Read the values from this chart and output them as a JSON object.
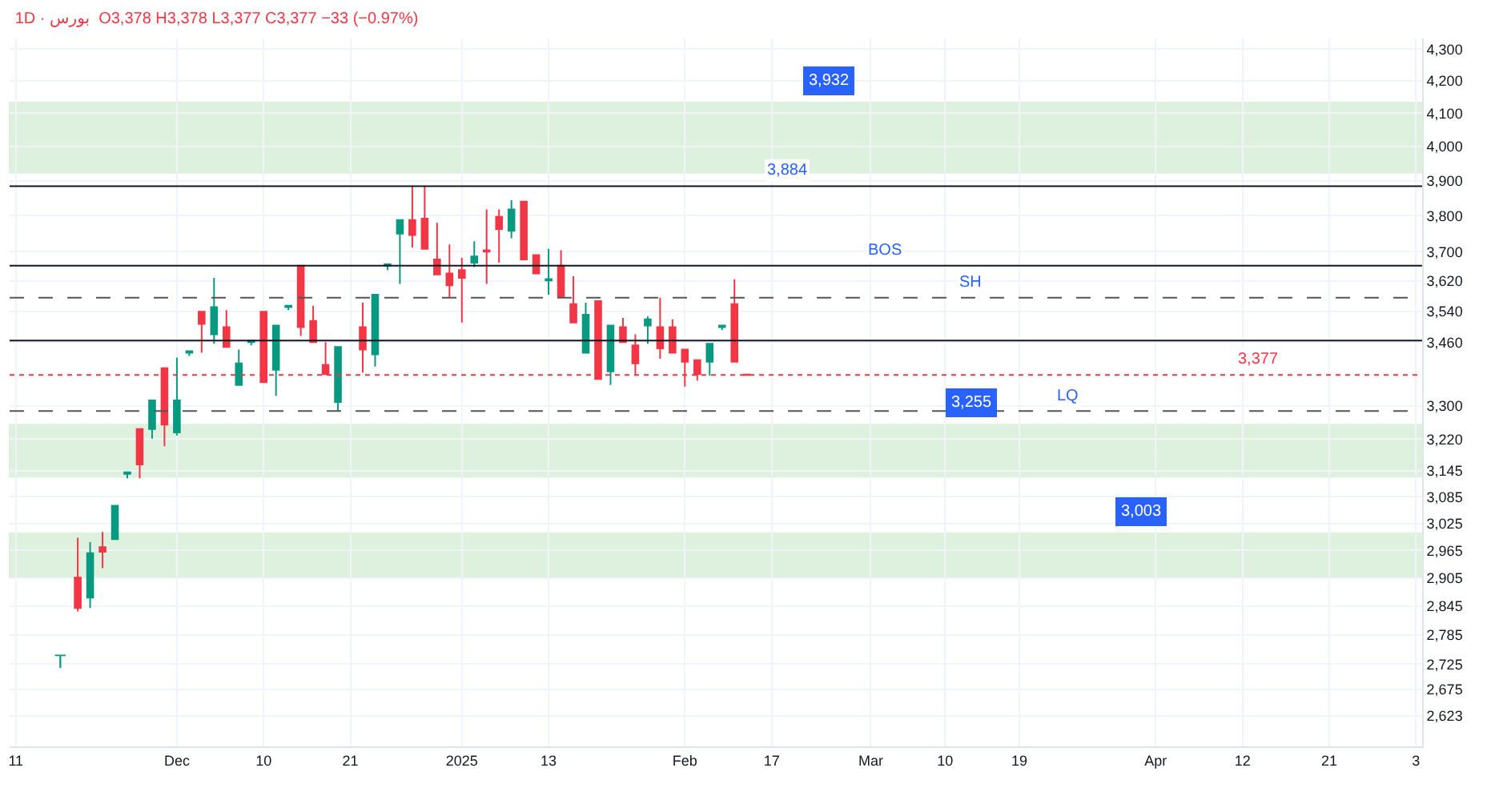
{
  "chart_data": {
    "type": "candlestick",
    "title": "1D · بورس  O3,378 H3,378 L3,377 C3,377 −33 (−0.97%)",
    "categories": [
      "11",
      null,
      null,
      null,
      null,
      null,
      null,
      null,
      null,
      null,
      null,
      null,
      null,
      "Dec",
      null,
      null,
      null,
      null,
      null,
      null,
      "10",
      null,
      null,
      null,
      null,
      null,
      null,
      "21",
      null,
      null,
      null,
      null,
      null,
      null,
      null,
      null,
      "2025",
      null,
      null,
      null,
      null,
      null,
      null,
      "13",
      null,
      null,
      null,
      null,
      null,
      null,
      null,
      null,
      null,
      null,
      "Feb",
      null,
      null,
      null,
      null,
      null,
      null,
      "17",
      null,
      null,
      null,
      null,
      null,
      null,
      null,
      "Mar",
      null,
      null,
      null,
      null,
      null,
      "10",
      null,
      null,
      null,
      null,
      null,
      "19",
      null,
      null,
      null,
      null,
      null,
      null,
      null,
      null,
      null,
      null,
      "Apr",
      null,
      null,
      null,
      null,
      null,
      null,
      "12",
      null,
      null,
      null,
      null,
      null,
      null,
      "21",
      null,
      null,
      null,
      null,
      null,
      null,
      "3"
    ],
    "ohlc": [
      null,
      null,
      null,
      null,
      null,
      [
        2906,
        2993,
        2834,
        2841
      ],
      [
        2863,
        2983,
        2841,
        2959
      ],
      [
        2972,
        3006,
        2926,
        2962
      ],
      [
        2990,
        3065,
        2990,
        3065
      ],
      [
        3138,
        3142,
        3128,
        3142
      ],
      [
        3244,
        3244,
        3128,
        3160
      ],
      [
        3244,
        3314,
        3221,
        3314
      ],
      [
        3394,
        3394,
        3203,
        3255
      ],
      [
        3236,
        3421,
        3229,
        3314
      ],
      [
        3433,
        3437,
        3425,
        3437
      ],
      [
        3539,
        3539,
        3433,
        3507
      ],
      [
        3480,
        3629,
        3456,
        3551
      ],
      [
        3499,
        3543,
        3448,
        3448
      ],
      [
        3352,
        3441,
        3352,
        3406
      ],
      [
        3460,
        3464,
        3452,
        3464
      ],
      [
        3539,
        3539,
        3359,
        3359
      ],
      [
        3390,
        3503,
        3325,
        3503
      ],
      [
        3551,
        3555,
        3543,
        3555
      ],
      [
        3662,
        3662,
        3476,
        3499
      ],
      [
        3515,
        3555,
        3460,
        3460
      ],
      [
        3402,
        3460,
        3379,
        3379
      ],
      [
        3310,
        3448,
        3288,
        3448
      ],
      null,
      [
        3499,
        3563,
        3383,
        3441
      ],
      [
        3429,
        3584,
        3398,
        3584
      ],
      [
        3662,
        3666,
        3650,
        3666
      ],
      [
        3750,
        3788,
        3613,
        3788
      ],
      [
        3788,
        3884,
        3712,
        3746
      ],
      [
        3792,
        3884,
        3708,
        3708
      ],
      [
        3679,
        3780,
        3638,
        3638
      ],
      [
        3641,
        3720,
        3576,
        3609
      ],
      [
        3650,
        3683,
        3511,
        3629
      ],
      [
        3670,
        3729,
        3658,
        3687
      ],
      [
        3704,
        3818,
        3613,
        3700
      ],
      [
        3797,
        3818,
        3670,
        3763
      ],
      [
        3758,
        3844,
        3737,
        3818
      ],
      [
        3840,
        3840,
        3679,
        3679
      ],
      [
        3691,
        3691,
        3641,
        3641
      ],
      [
        3622,
        3708,
        3584,
        3626
      ],
      [
        3662,
        3704,
        3580,
        3580
      ],
      [
        3559,
        3633,
        3511,
        3511
      ],
      [
        3433,
        3563,
        3433,
        3531
      ],
      [
        3567,
        3567,
        3367,
        3367
      ],
      [
        3386,
        3503,
        3352,
        3503
      ],
      [
        3499,
        3523,
        3460,
        3460
      ],
      [
        3452,
        3480,
        3375,
        3406
      ],
      [
        3503,
        3527,
        3456,
        3519
      ],
      [
        3499,
        3576,
        3417,
        3444
      ],
      [
        3499,
        3519,
        3433,
        3433
      ],
      [
        3441,
        3441,
        3348,
        3410
      ],
      [
        3414,
        3414,
        3363,
        3379
      ],
      [
        3410,
        3456,
        3375,
        3456
      ],
      [
        3499,
        3503,
        3491,
        3503
      ],
      [
        3559,
        3625,
        3410,
        3410
      ],
      [
        3378,
        3378,
        3377,
        3377
      ],
      null,
      null,
      null,
      null,
      null,
      null,
      null,
      null,
      null,
      null,
      null,
      null,
      null,
      null,
      null,
      null,
      null,
      null,
      null,
      null,
      null,
      null,
      null,
      null,
      null,
      null,
      null,
      null,
      null,
      null,
      null,
      null,
      null,
      null,
      null,
      null,
      null,
      null,
      null,
      null,
      null,
      null,
      null,
      null,
      null,
      null,
      null,
      null,
      null,
      null,
      null,
      null,
      null,
      null
    ],
    "log": true,
    "ylim": [
      2564,
      4334
    ],
    "yticks": [
      {
        "value": 2623,
        "label": "2,623"
      },
      {
        "value": 2675,
        "label": "2,675"
      },
      {
        "value": 2725,
        "label": "2,725"
      },
      {
        "value": 2785,
        "label": "2,785"
      },
      {
        "value": 2845,
        "label": "2,845"
      },
      {
        "value": 2905,
        "label": "2,905"
      },
      {
        "value": 2965,
        "label": "2,965"
      },
      {
        "value": 3025,
        "label": "3,025"
      },
      {
        "value": 3085,
        "label": "3,085"
      },
      {
        "value": 3145,
        "label": "3,145"
      },
      {
        "value": 3220,
        "label": "3,220"
      },
      {
        "value": 3300,
        "label": "3,300"
      },
      {
        "value": 3460,
        "label": "3,460"
      },
      {
        "value": 3540,
        "label": "3,540"
      },
      {
        "value": 3620,
        "label": "3,620"
      },
      {
        "value": 3700,
        "label": "3,700"
      },
      {
        "value": 3800,
        "label": "3,800"
      },
      {
        "value": 3900,
        "label": "3,900"
      },
      {
        "value": 4000,
        "label": "4,000"
      },
      {
        "value": 4100,
        "label": "4,100"
      },
      {
        "value": 4200,
        "label": "4,200"
      },
      {
        "value": 4300,
        "label": "4,300"
      }
    ],
    "grid": true,
    "ref_lines": [
      {
        "axis": "y",
        "value": 3884,
        "label": "3,884",
        "color": "#131722",
        "line_style": "solid"
      },
      {
        "axis": "y",
        "value": 3662,
        "label": "BOS",
        "color": "#131722",
        "line_style": "solid"
      },
      {
        "axis": "y",
        "value": 3576,
        "label": "SH",
        "color": "#555555",
        "line_style": "dashed"
      },
      {
        "axis": "y",
        "value": 3288,
        "label": "LQ",
        "color": "#555555",
        "line_style": "dashed"
      },
      {
        "axis": "y",
        "value": 3464,
        "label": null,
        "color": "#131722",
        "line_style": "solid"
      },
      {
        "axis": "y",
        "value": 3377,
        "label": "3,377",
        "color": "#f23645",
        "line_style": "dotted"
      }
    ],
    "bands": [
      {
        "axis": "y",
        "from": 3923,
        "to": 4133,
        "label": "3,932",
        "color": "#4caf50"
      },
      {
        "axis": "y",
        "from": 3131,
        "to": 3255,
        "label": "3,255",
        "color": "#4caf50"
      },
      {
        "axis": "y",
        "from": 2906,
        "to": 3003,
        "label": "3,003",
        "color": "#4caf50"
      }
    ],
    "annotations": [
      "T"
    ]
  }
}
